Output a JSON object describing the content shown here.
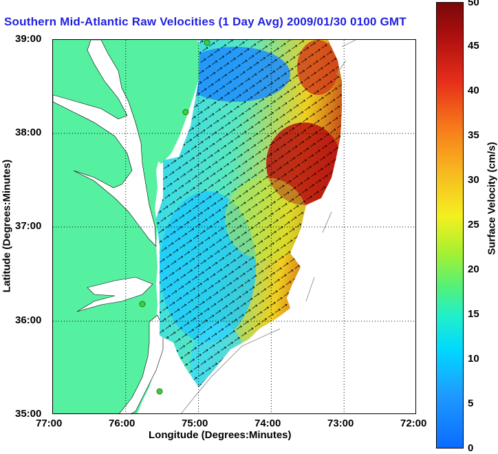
{
  "title": "Southern Mid-Atlantic Raw Velocities (1 Day Avg) 2009/01/30 0100 GMT",
  "xlabel": "Longitude (Degrees:Minutes)",
  "ylabel": "Latitude (Degrees:Minutes)",
  "colorbar_label": "Surface Velocity (cm/s)",
  "x_ticks": [
    "77:00",
    "76:00",
    "75:00",
    "74:00",
    "73:00",
    "72:00"
  ],
  "y_ticks": [
    "39:00",
    "38:00",
    "37:00",
    "36:00",
    "35:00"
  ],
  "colorbar_ticks": [
    "0",
    "5",
    "10",
    "15",
    "20",
    "25",
    "30",
    "35",
    "40",
    "45",
    "50"
  ],
  "colors": {
    "title": "#1f1fe0",
    "land": "#55f0a0",
    "water": "#ffffff",
    "grid": "#000000",
    "stations": "#3ad23a"
  },
  "chart_data": {
    "type": "heatmap",
    "title": "Southern Mid-Atlantic Raw Velocities (1 Day Avg) 2009/01/30 0100 GMT",
    "xlabel": "Longitude (Degrees:Minutes)",
    "ylabel": "Latitude (Degrees:Minutes)",
    "xlim": [
      -77,
      -72
    ],
    "ylim": [
      35,
      39
    ],
    "grid": true,
    "colorbar": {
      "label": "Surface Velocity (cm/s)",
      "range": [
        0,
        50
      ]
    },
    "overlay": "velocity vectors (arrows)",
    "stations": [
      {
        "lon": -74.87,
        "lat": 38.96
      },
      {
        "lon": -75.15,
        "lat": 38.24
      },
      {
        "lon": -75.65,
        "lat": 36.19
      },
      {
        "lon": -75.53,
        "lat": 35.25
      }
    ]
  }
}
